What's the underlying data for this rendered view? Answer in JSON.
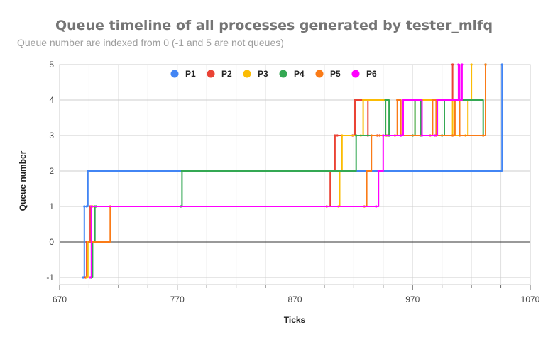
{
  "chart_data": {
    "type": "line",
    "title": "Queue timeline of all processes generated by tester_mlfq",
    "subtitle": "Queue number are indexed from 0 (-1 and 5 are not queues)",
    "xlabel": "Ticks",
    "ylabel": "Queue number",
    "xlim": [
      670,
      1070
    ],
    "ylim": [
      -1.2,
      5
    ],
    "x_ticks": [
      670,
      770,
      870,
      970,
      1070
    ],
    "y_ticks": [
      -1,
      0,
      1,
      2,
      3,
      4,
      5
    ],
    "legend_position": "top",
    "grid": true,
    "step": true,
    "series": [
      {
        "name": "P1",
        "color": "#4285f4",
        "x": [
          690,
          691,
          693,
          694,
          1045,
          1046
        ],
        "y": [
          -1,
          1,
          1,
          2,
          2,
          5
        ]
      },
      {
        "name": "P2",
        "color": "#ea4335",
        "x": [
          692,
          693,
          696,
          897,
          900,
          904,
          906,
          919,
          921,
          930,
          932,
          940,
          942,
          948,
          950,
          960,
          962,
          980,
          982,
          992,
          994,
          1003,
          1004
        ],
        "y": [
          -1,
          0,
          1,
          1,
          2,
          3,
          3,
          3,
          4,
          4,
          3,
          3,
          3,
          3,
          3,
          3,
          4,
          4,
          4,
          4,
          4,
          4,
          5
        ]
      },
      {
        "name": "P3",
        "color": "#fbbc04",
        "x": [
          693,
          694,
          697,
          698,
          907,
          908,
          910,
          926,
          928,
          945,
          947,
          970,
          972,
          1002,
          1004,
          1015,
          1017,
          1020
        ],
        "y": [
          -1,
          0,
          1,
          1,
          1,
          2,
          3,
          3,
          4,
          4,
          3,
          3,
          4,
          4,
          3,
          3,
          4,
          5
        ]
      },
      {
        "name": "P4",
        "color": "#34a853",
        "x": [
          697,
          698,
          700,
          701,
          773,
          774,
          920,
          922,
          945,
          947,
          948,
          950,
          970,
          972,
          975,
          977,
          995,
          997,
          1028,
          1030,
          1032
        ],
        "y": [
          -1,
          0,
          1,
          1,
          1,
          2,
          2,
          3,
          3,
          4,
          4,
          3,
          3,
          4,
          4,
          3,
          3,
          4,
          4,
          3,
          5
        ]
      },
      {
        "name": "P5",
        "color": "#fa7b17",
        "x": [
          695,
          696,
          712,
          713,
          929,
          931,
          933,
          935,
          955,
          957,
          958,
          960,
          985,
          987,
          988,
          990,
          1004,
          1006,
          1008,
          1010,
          1030,
          1032
        ],
        "y": [
          0,
          0,
          0,
          1,
          1,
          2,
          2,
          3,
          3,
          4,
          4,
          3,
          3,
          4,
          4,
          3,
          3,
          4,
          4,
          3,
          3,
          5
        ]
      },
      {
        "name": "P6",
        "color": "#ff00ff",
        "x": [
          696,
          697,
          939,
          941,
          943,
          945,
          960,
          962,
          976,
          978,
          989,
          991,
          1007,
          1009,
          1010,
          1012
        ],
        "y": [
          -1,
          1,
          1,
          2,
          2,
          3,
          3,
          4,
          4,
          3,
          3,
          4,
          4,
          5,
          4,
          5
        ]
      }
    ]
  }
}
